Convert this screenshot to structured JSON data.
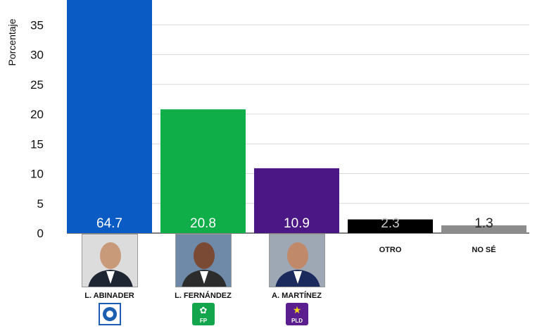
{
  "chart_data": {
    "type": "bar",
    "ylabel": "Porcentaje",
    "ylim": [
      0,
      40
    ],
    "yticks": [
      0,
      5,
      10,
      15,
      20,
      25,
      30,
      35
    ],
    "grid": true,
    "categories": [
      "L. ABINADER",
      "L. FERNÁNDEZ",
      "A. MARTÍNEZ",
      "OTRO",
      "NO SÉ"
    ],
    "values": [
      64.7,
      20.8,
      10.9,
      2.3,
      1.3
    ],
    "value_labels": [
      "64.7",
      "20.8",
      "10.9",
      "2.3",
      "1.3"
    ],
    "colors": [
      "#0a5bc4",
      "#0fae48",
      "#4b1784",
      "#000000",
      "#8c8c8c"
    ],
    "logos": [
      {
        "name": "prm-logo",
        "color": "#1c5fb0",
        "text": ""
      },
      {
        "name": "fp-logo",
        "color": "#12a54b",
        "text": "FP"
      },
      {
        "name": "pld-logo",
        "color": "#5b1e8f",
        "text": "PLD"
      }
    ]
  }
}
